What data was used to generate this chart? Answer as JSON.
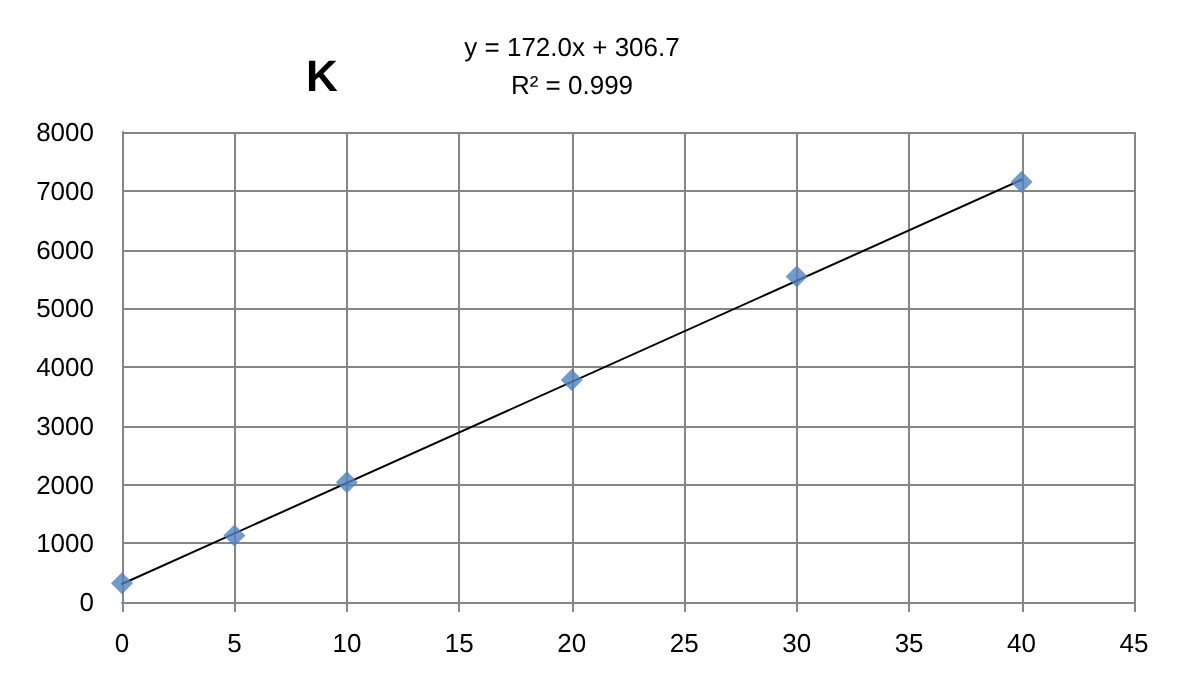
{
  "chart_data": {
    "type": "scatter",
    "title": "K",
    "annotations": [
      "y = 172.0x + 306.7",
      "R² = 0.999"
    ],
    "x": [
      0,
      5,
      10,
      20,
      30,
      40
    ],
    "series": [
      {
        "color": "#4f81bd",
        "values": [
          320,
          1130,
          2040,
          3780,
          5540,
          7150
        ],
        "marker": "diamond"
      },
      {
        "type": "line",
        "color": "#000000",
        "x": [
          0,
          40
        ],
        "values": [
          307,
          7187
        ],
        "marker": "none",
        "line_style": "solid"
      }
    ],
    "xlim": [
      0,
      45
    ],
    "xticks": [
      0,
      5,
      10,
      15,
      20,
      25,
      30,
      35,
      40,
      45
    ],
    "ylim": [
      0,
      8000
    ],
    "yticks": [
      0,
      1000,
      2000,
      3000,
      4000,
      5000,
      6000,
      7000,
      8000
    ],
    "grid": true
  }
}
